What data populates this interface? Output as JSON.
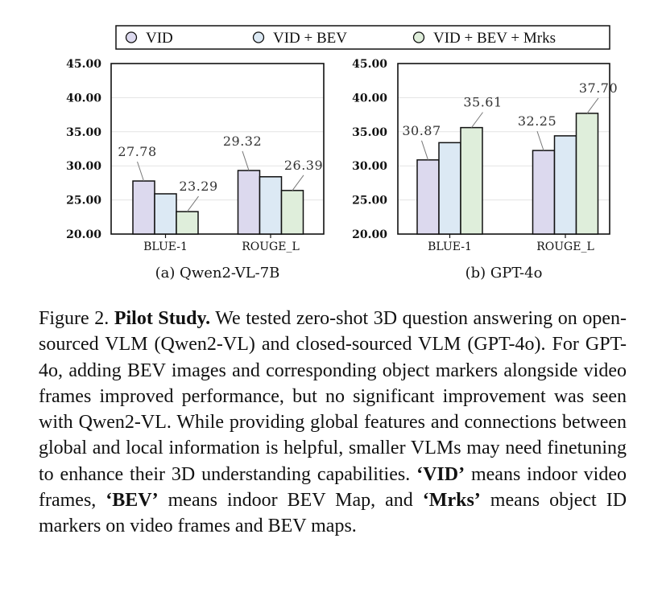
{
  "legend": {
    "items": [
      {
        "label": "VID",
        "color": "#dcd9ee"
      },
      {
        "label": "VID + BEV",
        "color": "#dce9f4"
      },
      {
        "label": "VID + BEV + Mrks",
        "color": "#dfeedb"
      }
    ]
  },
  "chart_data": [
    {
      "type": "bar",
      "subtitle": "(a) Qwen2-VL-7B",
      "categories": [
        "BLUE-1",
        "ROUGE_L"
      ],
      "series": [
        {
          "name": "VID",
          "values": [
            27.78,
            29.32
          ]
        },
        {
          "name": "VID + BEV",
          "values": [
            25.9,
            28.4
          ]
        },
        {
          "name": "VID + BEV + Mrks",
          "values": [
            23.29,
            26.39
          ]
        }
      ],
      "data_labels": [
        {
          "category": 0,
          "series": 0,
          "text": "27.78"
        },
        {
          "category": 0,
          "series": 2,
          "text": "23.29"
        },
        {
          "category": 1,
          "series": 0,
          "text": "29.32"
        },
        {
          "category": 1,
          "series": 2,
          "text": "26.39"
        }
      ],
      "yticks": [
        "20.00",
        "25.00",
        "30.00",
        "35.00",
        "40.00",
        "45.00"
      ],
      "ylim": [
        20,
        45
      ],
      "grid": true
    },
    {
      "type": "bar",
      "subtitle": "(b) GPT-4o",
      "categories": [
        "BLUE-1",
        "ROUGE_L"
      ],
      "series": [
        {
          "name": "VID",
          "values": [
            30.87,
            32.25
          ]
        },
        {
          "name": "VID + BEV",
          "values": [
            33.4,
            34.4
          ]
        },
        {
          "name": "VID + BEV + Mrks",
          "values": [
            35.61,
            37.7
          ]
        }
      ],
      "data_labels": [
        {
          "category": 0,
          "series": 0,
          "text": "30.87"
        },
        {
          "category": 0,
          "series": 2,
          "text": "35.61"
        },
        {
          "category": 1,
          "series": 0,
          "text": "32.25"
        },
        {
          "category": 1,
          "series": 2,
          "text": "37.70"
        }
      ],
      "yticks": [
        "20.00",
        "25.00",
        "30.00",
        "35.00",
        "40.00",
        "45.00"
      ],
      "ylim": [
        20,
        45
      ],
      "grid": true
    }
  ],
  "caption": {
    "figure_label": "Figure 2.",
    "bold_title": "Pilot Study.",
    "text1": "We tested zero-shot 3D question answering on open-sourced VLM (Qwen2-VL) and closed-sourced VLM (GPT-4o). For GPT-4o, adding BEV images and corresponding object markers alongside video frames improved performance, but no significant improvement was seen with Qwen2-VL. While providing global features and connections between global and local information is helpful, smaller VLMs may need finetuning to enhance their 3D understanding capabilities.",
    "term_vid": "‘VID’",
    "text2": "means indoor video frames,",
    "term_bev": "‘BEV’",
    "text3": "means indoor BEV Map, and",
    "term_mrks": "‘Mrks’",
    "text4": "means object ID markers on video frames and BEV maps."
  }
}
